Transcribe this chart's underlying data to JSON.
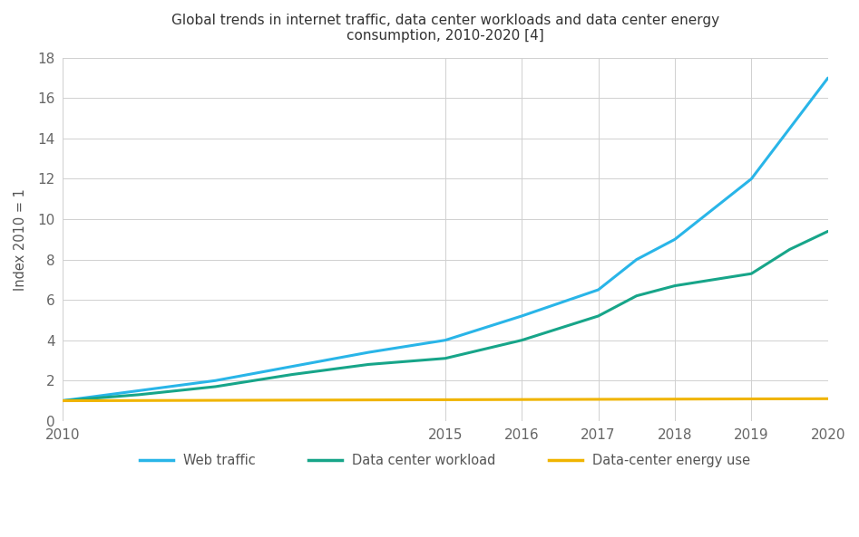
{
  "title_line1": "Global trends in internet traffic, data center workloads and data center energy",
  "title_line2": "consumption, 2010-2020 [4]",
  "title2_superscript": "[4]",
  "ylabel": "Index 2010 = 1",
  "background_color": "#ffffff",
  "grid_color": "#d0d0d0",
  "web_traffic": {
    "x": [
      2010,
      2011,
      2012,
      2013,
      2014,
      2015,
      2016,
      2017,
      2017.5,
      2018,
      2018.5,
      2019,
      2019.5,
      2020
    ],
    "y": [
      1.0,
      1.5,
      2.0,
      2.7,
      3.4,
      4.0,
      5.2,
      6.5,
      8.0,
      9.0,
      10.5,
      12.0,
      14.5,
      17.0
    ],
    "color": "#29b5e8",
    "linewidth": 2.2
  },
  "datacenter_workload": {
    "x": [
      2010,
      2011,
      2012,
      2013,
      2014,
      2015,
      2016,
      2017,
      2017.5,
      2018,
      2018.5,
      2019,
      2019.5,
      2020
    ],
    "y": [
      1.0,
      1.3,
      1.7,
      2.3,
      2.8,
      3.1,
      4.0,
      5.2,
      6.2,
      6.7,
      7.0,
      7.3,
      8.5,
      9.4
    ],
    "color": "#17a589",
    "linewidth": 2.2
  },
  "energy_use": {
    "x": [
      2010,
      2020
    ],
    "y": [
      1.0,
      1.1
    ],
    "color": "#f0b400",
    "linewidth": 2.2
  },
  "xlim": [
    2010,
    2020
  ],
  "ylim": [
    0,
    18
  ],
  "yticks": [
    0,
    2,
    4,
    6,
    8,
    10,
    12,
    14,
    16,
    18
  ],
  "xtick_labels": [
    "2010",
    "2015",
    "2016",
    "2017",
    "2018",
    "2019",
    "2020"
  ],
  "xtick_positions": [
    2010,
    2015,
    2016,
    2017,
    2018,
    2019,
    2020
  ],
  "legend_labels": [
    "Web traffic",
    "Data center workload",
    "Data-center energy use"
  ]
}
